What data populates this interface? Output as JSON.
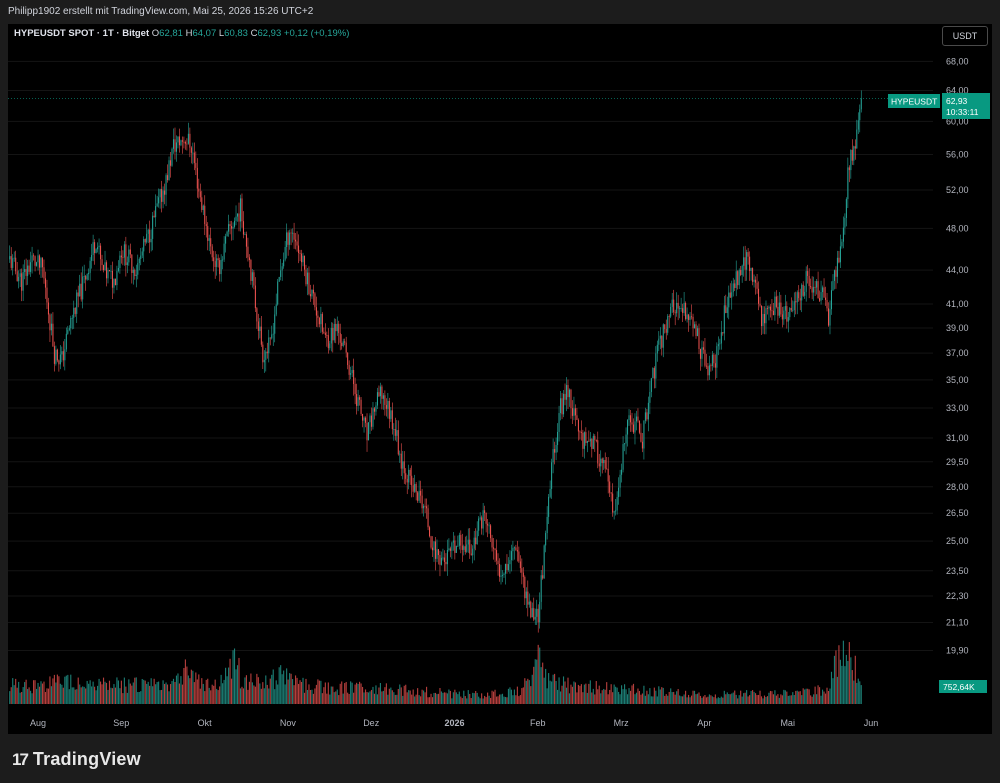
{
  "header": {
    "attribution": "Philipp1902 erstellt mit TradingView.com, Mai 25, 2026 15:26 UTC+2"
  },
  "legend": {
    "symbol": "HYPEUSDT SPOT · 1T · Bitget",
    "o_label": "O",
    "o_value": "62,81",
    "h_label": "H",
    "h_value": "64,07",
    "l_label": "L",
    "l_value": "60,83",
    "c_label": "C",
    "c_value": "62,93",
    "change": "+0,12 (+0,19%)"
  },
  "currency_button": "USDT",
  "price_tag": {
    "symbol": "HYPEUSDT",
    "price": "62,93",
    "countdown": "10:33:11"
  },
  "volume_tag": "752,64K",
  "brand": "TradingView",
  "colors": {
    "up": "#26a69a",
    "down": "#ef5350",
    "accent": "#089981",
    "background": "#000000"
  },
  "chart_data": {
    "type": "candlestick",
    "y_scale": "log",
    "ylim": [
      17.8,
      72
    ],
    "y_ticks": [
      "68,00",
      "64,00",
      "60,00",
      "56,00",
      "52,00",
      "48,00",
      "44,00",
      "41,00",
      "39,00",
      "37,00",
      "35,00",
      "33,00",
      "31,00",
      "29,50",
      "28,00",
      "26,50",
      "25,00",
      "23,50",
      "22,30",
      "21,10",
      "19,90"
    ],
    "x_ticks": [
      {
        "label": "Aug",
        "bold": false
      },
      {
        "label": "Sep",
        "bold": false
      },
      {
        "label": "Okt",
        "bold": false
      },
      {
        "label": "Nov",
        "bold": false
      },
      {
        "label": "Dez",
        "bold": false
      },
      {
        "label": "2026",
        "bold": true
      },
      {
        "label": "Feb",
        "bold": false
      },
      {
        "label": "Mrz",
        "bold": false
      },
      {
        "label": "Apr",
        "bold": false
      },
      {
        "label": "Mai",
        "bold": false
      },
      {
        "label": "Jun",
        "bold": false
      }
    ],
    "last_close": 62.93,
    "close_path": [
      [
        0,
        45
      ],
      [
        8,
        43
      ],
      [
        15,
        45
      ],
      [
        22,
        44
      ],
      [
        30,
        37
      ],
      [
        35,
        36.5
      ],
      [
        42,
        40
      ],
      [
        50,
        43
      ],
      [
        58,
        47
      ],
      [
        62,
        44
      ],
      [
        70,
        43
      ],
      [
        75,
        46
      ],
      [
        85,
        44
      ],
      [
        95,
        48
      ],
      [
        105,
        53
      ],
      [
        110,
        57
      ],
      [
        118,
        58
      ],
      [
        122,
        57
      ],
      [
        127,
        52
      ],
      [
        135,
        46
      ],
      [
        140,
        44
      ],
      [
        148,
        48
      ],
      [
        155,
        50
      ],
      [
        160,
        46
      ],
      [
        165,
        41
      ],
      [
        170,
        37
      ],
      [
        175,
        37.5
      ],
      [
        182,
        44
      ],
      [
        188,
        48
      ],
      [
        192,
        47
      ],
      [
        198,
        44
      ],
      [
        205,
        41
      ],
      [
        212,
        38
      ],
      [
        220,
        39
      ],
      [
        228,
        36
      ],
      [
        235,
        33
      ],
      [
        240,
        31
      ],
      [
        245,
        33
      ],
      [
        250,
        34
      ],
      [
        258,
        32
      ],
      [
        262,
        30
      ],
      [
        270,
        28
      ],
      [
        278,
        27
      ],
      [
        285,
        24.5
      ],
      [
        292,
        24
      ],
      [
        298,
        24.5
      ],
      [
        305,
        25
      ],
      [
        310,
        24.5
      ],
      [
        318,
        26.5
      ],
      [
        322,
        25.5
      ],
      [
        328,
        23.5
      ],
      [
        335,
        24
      ],
      [
        340,
        25
      ],
      [
        345,
        23
      ],
      [
        350,
        21.5
      ],
      [
        355,
        21.5
      ],
      [
        360,
        25
      ],
      [
        365,
        30
      ],
      [
        370,
        33
      ],
      [
        375,
        34.5
      ],
      [
        380,
        32
      ],
      [
        385,
        31
      ],
      [
        390,
        31
      ],
      [
        395,
        30
      ],
      [
        400,
        29
      ],
      [
        405,
        26.5
      ],
      [
        408,
        27
      ],
      [
        412,
        30
      ],
      [
        416,
        32
      ],
      [
        420,
        32
      ],
      [
        425,
        31
      ],
      [
        430,
        34
      ],
      [
        435,
        37
      ],
      [
        440,
        39
      ],
      [
        445,
        41
      ],
      [
        450,
        40
      ],
      [
        455,
        40.5
      ],
      [
        460,
        39
      ],
      [
        465,
        37
      ],
      [
        470,
        35.5
      ],
      [
        475,
        37
      ],
      [
        480,
        40
      ],
      [
        485,
        42
      ],
      [
        490,
        44
      ],
      [
        495,
        45
      ],
      [
        500,
        43
      ],
      [
        505,
        40
      ],
      [
        510,
        40.5
      ],
      [
        515,
        41
      ],
      [
        520,
        40
      ],
      [
        525,
        40
      ],
      [
        530,
        42
      ],
      [
        535,
        43
      ],
      [
        540,
        42.5
      ],
      [
        545,
        42
      ],
      [
        550,
        40
      ],
      [
        555,
        44
      ],
      [
        560,
        48
      ],
      [
        565,
        57
      ],
      [
        567,
        56
      ],
      [
        570,
        61
      ],
      [
        572,
        62.93
      ]
    ],
    "volume_path": [
      [
        0,
        10
      ],
      [
        20,
        9
      ],
      [
        40,
        12
      ],
      [
        60,
        9
      ],
      [
        80,
        10
      ],
      [
        100,
        9
      ],
      [
        115,
        14
      ],
      [
        120,
        20
      ],
      [
        125,
        12
      ],
      [
        140,
        9
      ],
      [
        148,
        17
      ],
      [
        152,
        27
      ],
      [
        155,
        13
      ],
      [
        160,
        11
      ],
      [
        170,
        10
      ],
      [
        180,
        14
      ],
      [
        190,
        12
      ],
      [
        200,
        9
      ],
      [
        220,
        8
      ],
      [
        240,
        8
      ],
      [
        260,
        7
      ],
      [
        280,
        6
      ],
      [
        300,
        5
      ],
      [
        320,
        5
      ],
      [
        340,
        6
      ],
      [
        350,
        11
      ],
      [
        355,
        22
      ],
      [
        360,
        13
      ],
      [
        370,
        10
      ],
      [
        380,
        9
      ],
      [
        400,
        8
      ],
      [
        420,
        7
      ],
      [
        440,
        6
      ],
      [
        460,
        5
      ],
      [
        480,
        5
      ],
      [
        500,
        5
      ],
      [
        520,
        5
      ],
      [
        540,
        6
      ],
      [
        550,
        8
      ],
      [
        555,
        20
      ],
      [
        560,
        24
      ],
      [
        565,
        22
      ],
      [
        572,
        10
      ]
    ]
  }
}
